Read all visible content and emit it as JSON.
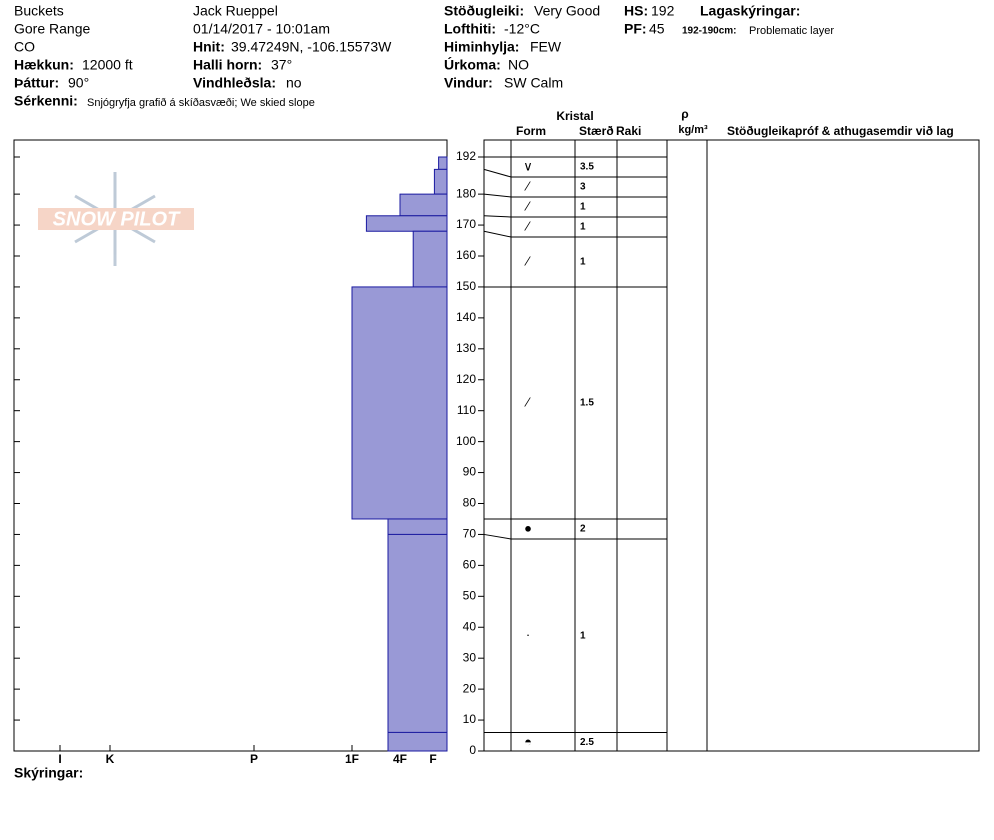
{
  "header": {
    "site": "Buckets",
    "range": "Gore Range",
    "state": "CO",
    "elevation_label": "Hækkun:",
    "elevation": "12000 ft",
    "aspect_label": "Þáttur:",
    "aspect": "90°",
    "features_label": "Sérkenni:",
    "features": "Snjógryfja grafið á skíðasvæði; We skied slope",
    "observer": "Jack Rueppel",
    "datetime": "01/14/2017 - 10:01am",
    "coords_label": "Hnit:",
    "coords": "39.47249N, -106.15573W",
    "slope_label": "Halli horn:",
    "slope": "37°",
    "wind_loading_label": "Vindhleðsla:",
    "wind_loading": "no",
    "stability_label": "Stöðugleiki:",
    "stability": "Very Good",
    "air_temp_label": "Lofthiti:",
    "air_temp": "-12°C",
    "sky_label": "Himinhylja:",
    "sky": "FEW",
    "precip_label": "Úrkoma:",
    "precip": "NO",
    "wind_label": "Vindur:",
    "wind": "SW Calm",
    "hs_label": "HS:",
    "hs": 192,
    "pf_label": "PF:",
    "pf": 45,
    "layer_notes_label": "Lagaskýringar:",
    "layer_note_range": "192-190cm:",
    "layer_note": "Problematic layer"
  },
  "logo": "SNOW PILOT",
  "table_headers": {
    "crystal": "Kristal",
    "form": "Form",
    "size": "Stærð",
    "moisture": "Raki",
    "rho": "ρ",
    "density_unit": "kg/m³",
    "tests": "Stöðugleikapróf & athugasemdir við lag"
  },
  "profile": {
    "ylim": [
      0,
      192
    ],
    "yticks": [
      0,
      10,
      20,
      30,
      40,
      50,
      60,
      70,
      80,
      90,
      100,
      110,
      120,
      130,
      140,
      150,
      160,
      170,
      180,
      192
    ],
    "hardness_ticks": [
      {
        "value": 6,
        "label": "I"
      },
      {
        "value": 5,
        "label": "K"
      },
      {
        "value": 4,
        "label": "P"
      },
      {
        "value": 3,
        "label": "1F"
      },
      {
        "value": 2,
        "label": "4F"
      },
      {
        "value": 1,
        "label": "F"
      }
    ],
    "color": "#9999d6",
    "layers": [
      {
        "top": 192,
        "bottom": 188,
        "hardness": 0.6,
        "form": "∨",
        "size": 3.5
      },
      {
        "top": 188,
        "bottom": 180,
        "hardness": 0.9,
        "form": "⁄",
        "size": 3
      },
      {
        "top": 180,
        "bottom": 173,
        "hardness": 2,
        "form": "⁄",
        "size": 1
      },
      {
        "top": 173,
        "bottom": 168,
        "hardness": 2.7,
        "form": "⁄",
        "size": 1
      },
      {
        "top": 168,
        "bottom": 150,
        "hardness": 1.6,
        "form": "⁄",
        "size": 1
      },
      {
        "top": 150,
        "bottom": 75,
        "hardness": 3,
        "form": "⁄",
        "size": 1.5
      },
      {
        "top": 75,
        "bottom": 70,
        "hardness": 2.25,
        "form": "●",
        "size": 2
      },
      {
        "top": 70,
        "bottom": 6,
        "hardness": 2.25,
        "form": "·",
        "size": 1
      },
      {
        "top": 6,
        "bottom": 0,
        "hardness": 2.25,
        "form": "◓",
        "size": 2.5
      }
    ]
  },
  "footer": "Skýringar:"
}
